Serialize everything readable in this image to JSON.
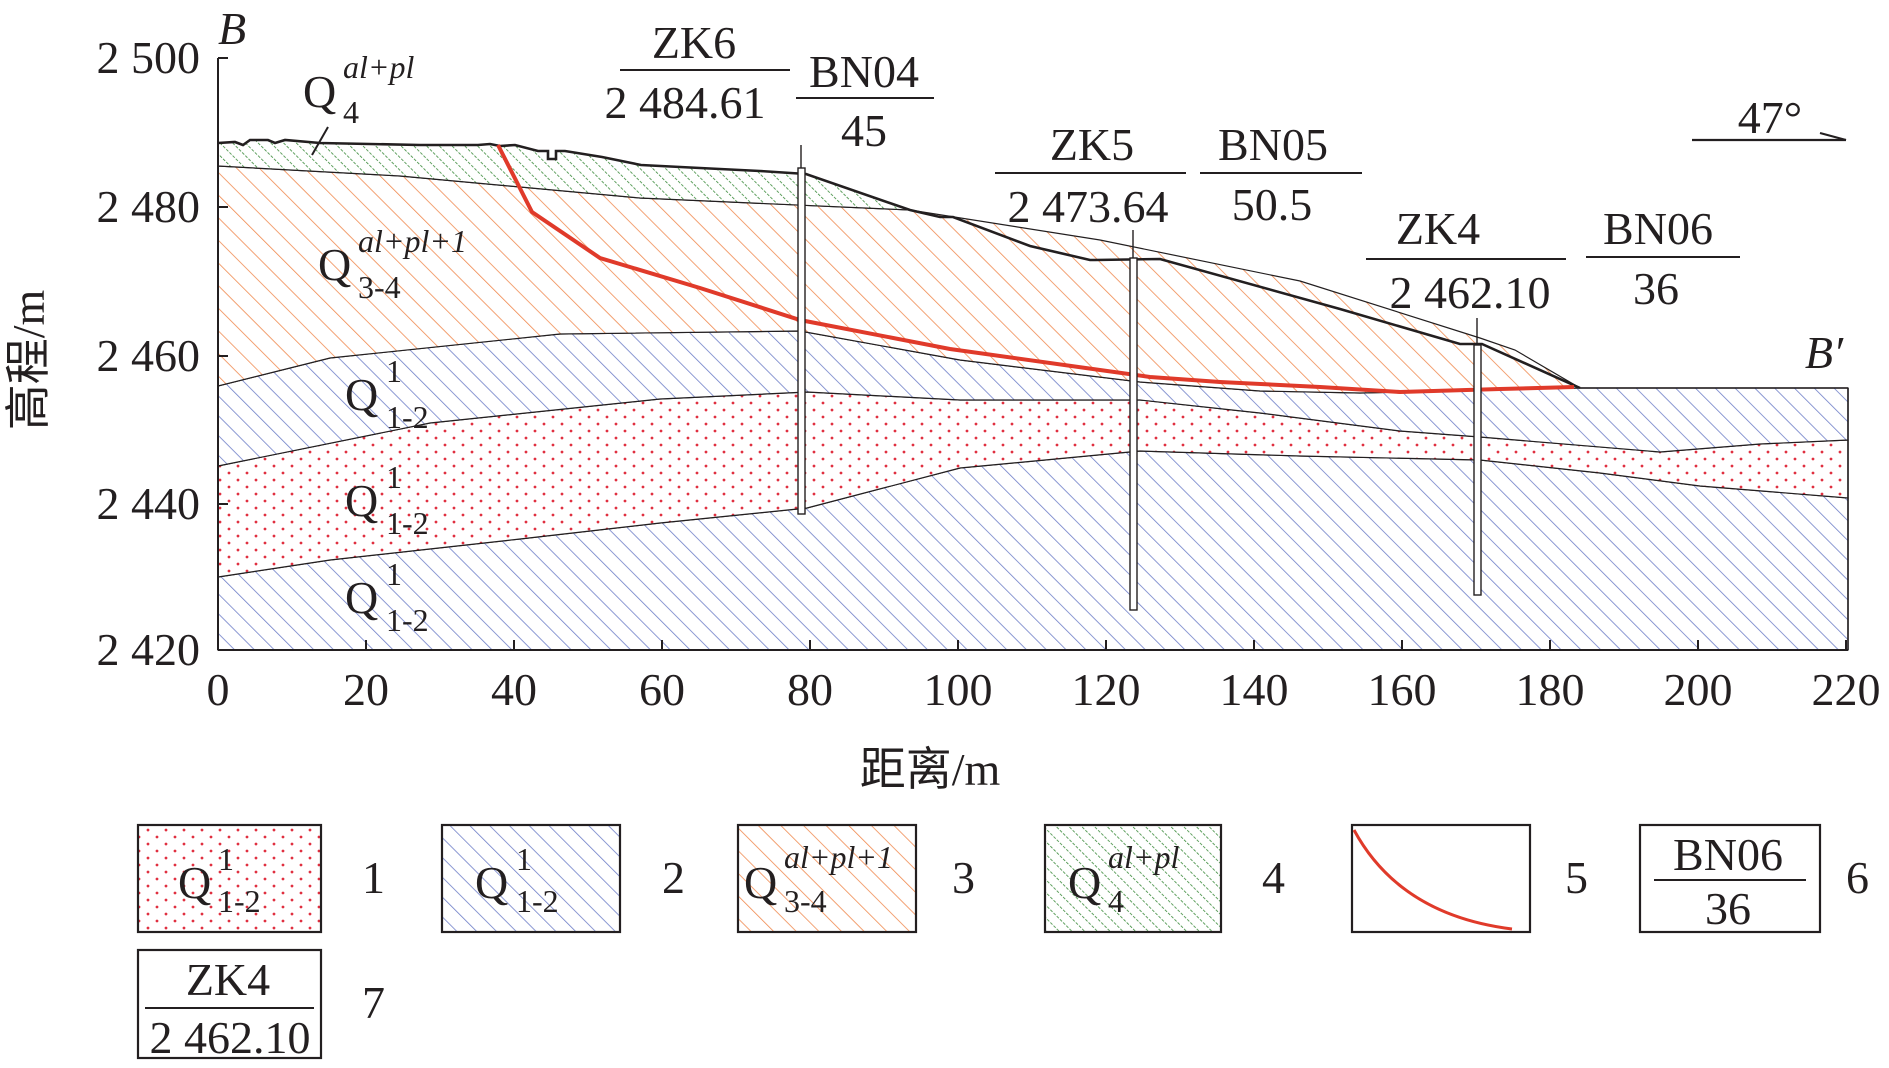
{
  "section": {
    "start_label": "B",
    "end_label": "B′"
  },
  "axes": {
    "ylabel": "高程/m",
    "xlabel": "距离/m",
    "x_ticks": [
      "0",
      "20",
      "40",
      "60",
      "80",
      "100",
      "120",
      "140",
      "160",
      "180",
      "200",
      "220"
    ],
    "y_ticks": [
      "2 500",
      "2 480",
      "2 460",
      "2 440",
      "2 420"
    ]
  },
  "direction": "47°",
  "layers": {
    "q4": {
      "sym": "Q",
      "sup": "al+pl",
      "sub": "4"
    },
    "q34": {
      "sym": "Q",
      "sup": "al+pl+1",
      "sub": "3-4"
    },
    "q12_upper": {
      "sym": "Q",
      "sup": "1",
      "sub": "1-2"
    },
    "q12_middle": {
      "sym": "Q",
      "sup": "1",
      "sub": "1-2"
    },
    "q12_lower": {
      "sym": "Q",
      "sup": "1",
      "sub": "1-2"
    }
  },
  "boreholes": [
    {
      "id": "ZK6",
      "elevation": "2 484.61",
      "x_m": 79.5
    },
    {
      "id": "ZK5",
      "elevation": "2 473.64",
      "x_m": 124.5
    },
    {
      "id": "ZK4",
      "elevation": "2 462.10",
      "x_m": 171
    }
  ],
  "points": [
    {
      "id": "BN04",
      "value": "45"
    },
    {
      "id": "BN05",
      "value": "50.5"
    },
    {
      "id": "BN06",
      "value": "36"
    }
  ],
  "legend": [
    {
      "num": "1",
      "sym": "Q",
      "sup": "1",
      "sub": "1-2"
    },
    {
      "num": "2",
      "sym": "Q",
      "sup": "1",
      "sub": "1-2"
    },
    {
      "num": "3",
      "sym": "Q",
      "sup": "al+pl+1",
      "sub": "3-4"
    },
    {
      "num": "4",
      "sym": "Q",
      "sup": "al+pl",
      "sub": "4"
    },
    {
      "num": "5"
    },
    {
      "num": "6",
      "top": "BN06",
      "bottom": "36"
    },
    {
      "num": "7",
      "top": "ZK4",
      "bottom": "2 462.10"
    }
  ],
  "colors": {
    "q4_hatch": "#3a8a3a",
    "q34_hatch": "#f08a50",
    "q12_hatch": "#6f7fc8",
    "q12_dots": "#e03040",
    "slip_line": "#e03a2a",
    "ink": "#231f20"
  }
}
